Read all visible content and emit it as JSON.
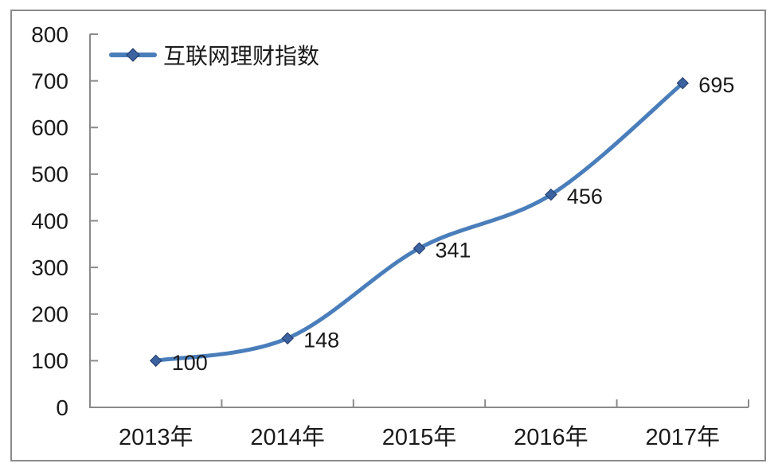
{
  "chart_data": {
    "type": "line",
    "title": "",
    "categories": [
      "2013年",
      "2014年",
      "2015年",
      "2016年",
      "2017年"
    ],
    "series": [
      {
        "name": "互联网理财指数",
        "values": [
          100,
          148,
          341,
          456,
          695
        ]
      }
    ],
    "data_labels": [
      "100",
      "148",
      "341",
      "456",
      "695"
    ],
    "xlabel": "",
    "ylabel": "",
    "ylim": [
      0,
      800
    ],
    "yticks": [
      0,
      100,
      200,
      300,
      400,
      500,
      600,
      700,
      800
    ],
    "grid": false,
    "smooth_line": true,
    "show_data_labels": true,
    "legend_position": "top-left",
    "legend_marker": "line-with-diamond",
    "colors": {
      "line": "#4a7ebb",
      "marker_fill": "#3c62a0",
      "marker_stroke": "#1f3864",
      "axis": "#8a8a8a",
      "text": "#1a1a1a",
      "frame_border": "#8a8a8a",
      "background": "#ffffff"
    }
  }
}
